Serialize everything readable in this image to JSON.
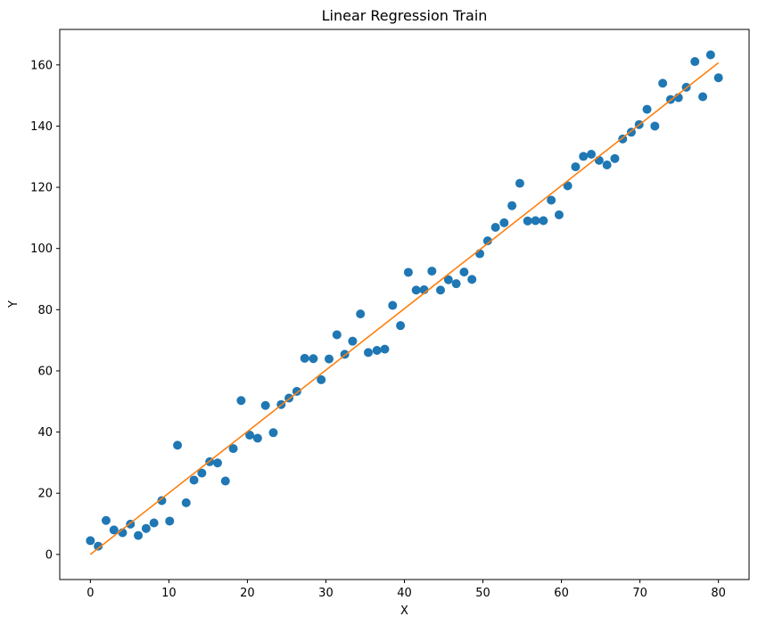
{
  "chart_data": {
    "type": "scatter",
    "title": "Linear Regression Train",
    "xlabel": "X",
    "ylabel": "Y",
    "xlim": [
      -3.9,
      83.9
    ],
    "ylim": [
      -8.2,
      171.6
    ],
    "x_ticks": [
      0,
      10,
      20,
      30,
      40,
      50,
      60,
      70,
      80
    ],
    "y_ticks": [
      0,
      20,
      40,
      60,
      80,
      100,
      120,
      140,
      160
    ],
    "grid": false,
    "legend": "none",
    "series": [
      {
        "kind": "scatter",
        "color": "#1f77b4",
        "points": [
          [
            0.0,
            4.5
          ],
          [
            1.0,
            2.7
          ],
          [
            2.0,
            11.1
          ],
          [
            3.0,
            8.0
          ],
          [
            4.1,
            7.1
          ],
          [
            5.1,
            9.9
          ],
          [
            6.1,
            6.2
          ],
          [
            7.1,
            8.5
          ],
          [
            8.1,
            10.3
          ],
          [
            9.1,
            17.6
          ],
          [
            10.1,
            10.9
          ],
          [
            11.1,
            35.7
          ],
          [
            12.2,
            16.9
          ],
          [
            13.2,
            24.3
          ],
          [
            14.2,
            26.6
          ],
          [
            15.2,
            30.3
          ],
          [
            16.2,
            29.9
          ],
          [
            17.2,
            24.0
          ],
          [
            18.2,
            34.6
          ],
          [
            19.2,
            50.3
          ],
          [
            20.3,
            39.0
          ],
          [
            21.3,
            38.0
          ],
          [
            22.3,
            48.7
          ],
          [
            23.3,
            39.8
          ],
          [
            24.3,
            49.0
          ],
          [
            25.3,
            51.1
          ],
          [
            26.3,
            53.3
          ],
          [
            27.3,
            64.1
          ],
          [
            28.4,
            64.0
          ],
          [
            29.4,
            57.1
          ],
          [
            30.4,
            63.9
          ],
          [
            31.4,
            71.8
          ],
          [
            32.4,
            65.4
          ],
          [
            33.4,
            69.7
          ],
          [
            34.4,
            78.6
          ],
          [
            35.4,
            66.0
          ],
          [
            36.5,
            66.7
          ],
          [
            37.5,
            67.1
          ],
          [
            38.5,
            81.4
          ],
          [
            39.5,
            74.8
          ],
          [
            40.5,
            92.2
          ],
          [
            41.5,
            86.4
          ],
          [
            42.5,
            86.5
          ],
          [
            43.5,
            92.6
          ],
          [
            44.6,
            86.4
          ],
          [
            45.6,
            89.8
          ],
          [
            46.6,
            88.5
          ],
          [
            47.6,
            92.3
          ],
          [
            48.6,
            89.9
          ],
          [
            49.6,
            98.3
          ],
          [
            50.6,
            102.5
          ],
          [
            51.6,
            106.9
          ],
          [
            52.7,
            108.4
          ],
          [
            53.7,
            114.0
          ],
          [
            54.7,
            121.3
          ],
          [
            55.7,
            109.0
          ],
          [
            56.7,
            109.1
          ],
          [
            57.7,
            109.1
          ],
          [
            58.7,
            115.8
          ],
          [
            59.7,
            111.0
          ],
          [
            60.8,
            120.5
          ],
          [
            61.8,
            126.7
          ],
          [
            62.8,
            130.1
          ],
          [
            63.8,
            130.8
          ],
          [
            64.8,
            128.8
          ],
          [
            65.8,
            127.3
          ],
          [
            66.8,
            129.4
          ],
          [
            67.8,
            135.8
          ],
          [
            68.9,
            138.0
          ],
          [
            69.9,
            140.5
          ],
          [
            70.9,
            145.5
          ],
          [
            71.9,
            140.0
          ],
          [
            72.9,
            154.0
          ],
          [
            73.9,
            148.7
          ],
          [
            74.9,
            149.3
          ],
          [
            75.9,
            152.7
          ],
          [
            77.0,
            161.1
          ],
          [
            78.0,
            149.6
          ],
          [
            79.0,
            163.3
          ],
          [
            80.0,
            155.8
          ]
        ]
      },
      {
        "kind": "line",
        "color": "#ff7f0e",
        "points": [
          [
            0,
            0
          ],
          [
            80,
            160.7
          ]
        ]
      }
    ]
  }
}
